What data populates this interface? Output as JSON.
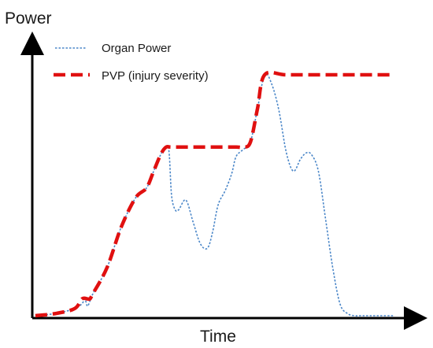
{
  "chart_data": {
    "type": "line",
    "title": "",
    "xlabel": "Time",
    "ylabel": "Power",
    "xlim": [
      0,
      100
    ],
    "ylim": [
      0,
      100
    ],
    "grid": false,
    "legend_position": "top-left",
    "series": [
      {
        "name": "Organ Power",
        "color": "#4a86c8",
        "style": "dotted",
        "x": [
          0,
          6,
          11,
          13,
          13.8,
          14.5,
          15.2,
          16,
          20,
          24,
          28,
          31,
          33,
          35,
          36.5,
          37.3,
          38,
          39,
          40,
          42,
          44,
          46,
          48,
          49.5,
          51,
          53,
          54.8,
          56,
          58,
          60,
          62,
          64,
          66,
          68,
          70,
          72,
          74,
          75.5,
          77,
          79,
          81,
          83,
          85,
          87,
          89,
          90.5,
          92,
          95,
          100
        ],
        "y": [
          0,
          1,
          3,
          5,
          7,
          4,
          6,
          9,
          20,
          37,
          49,
          53,
          60,
          67,
          70,
          68,
          50,
          44,
          44,
          48,
          39,
          30,
          28,
          35,
          46,
          52,
          59,
          66,
          69,
          72,
          86,
          100,
          96,
          85,
          68,
          60,
          65,
          67.5,
          67,
          60,
          40,
          20,
          5,
          1,
          0,
          0,
          0,
          0,
          0
        ]
      },
      {
        "name": "PVP (injury severity)",
        "color": "#e01010",
        "style": "dashed",
        "x": [
          0,
          6,
          11,
          13,
          14.5,
          15.2,
          16,
          20,
          24,
          28,
          31,
          33,
          35,
          36.5,
          38,
          44,
          50,
          56,
          58,
          60,
          62,
          64,
          70,
          80,
          90,
          100
        ],
        "y": [
          0,
          1,
          3,
          7,
          7,
          7,
          9,
          20,
          37,
          49,
          53,
          60,
          67,
          70,
          70,
          70,
          70,
          70,
          70,
          72,
          86,
          100,
          100,
          100,
          100,
          100
        ]
      }
    ]
  }
}
